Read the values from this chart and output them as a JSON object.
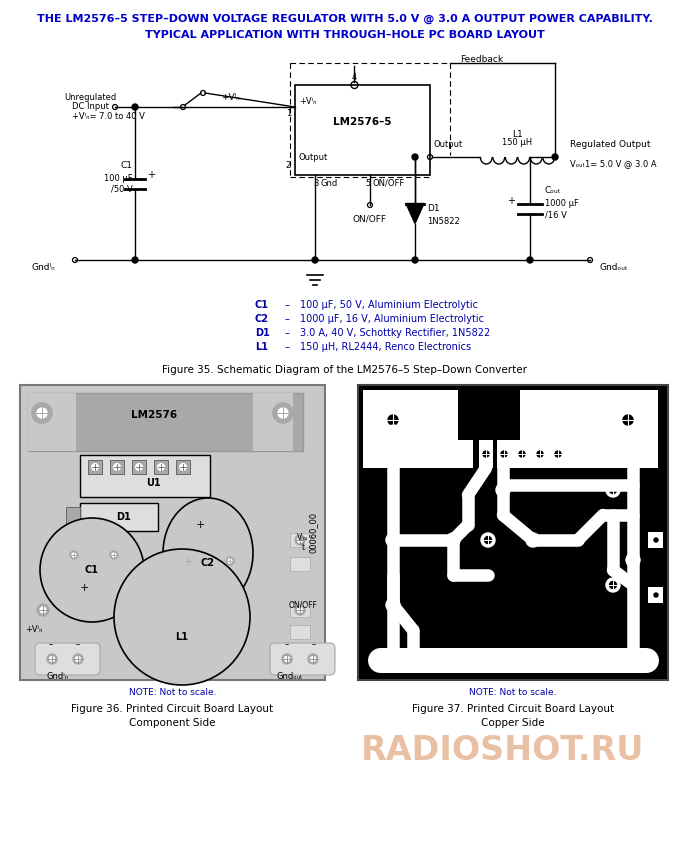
{
  "title_line1": "THE LM2576–5 STEP–DOWN VOLTAGE REGULATOR WITH 5.0 V @ 3.0 A OUTPUT POWER CAPABILITY.",
  "title_line2": "TYPICAL APPLICATION WITH THROUGH–HOLE PC BOARD LAYOUT",
  "title_color": "#0000CC",
  "fig35_caption": "Figure 35. Schematic Diagram of the LM2576–5 Step–Down Converter",
  "fig36_caption_line1": "Figure 36. Printed Circuit Board Layout",
  "fig36_caption_line2": "Component Side",
  "fig37_caption_line1": "Figure 37. Printed Circuit Board Layout",
  "fig37_caption_line2": "Copper Side",
  "note_text": "NOTE: Not to scale.",
  "bom_items": [
    [
      "C1",
      "100 µF, 50 V, Aluminium Electrolytic"
    ],
    [
      "C2",
      "1000 µF, 16 V, Aluminium Electrolytic"
    ],
    [
      "D1",
      "3.0 A, 40 V, Schottky Rectifier, 1N5822"
    ],
    [
      "L1",
      "150 µH, RL2444, Renco Electronics"
    ]
  ],
  "bom_color": "#0000AA",
  "watermark_text": "RADIOSHOT.RU",
  "watermark_color": "#D4824A",
  "background_color": "#FFFFFF"
}
